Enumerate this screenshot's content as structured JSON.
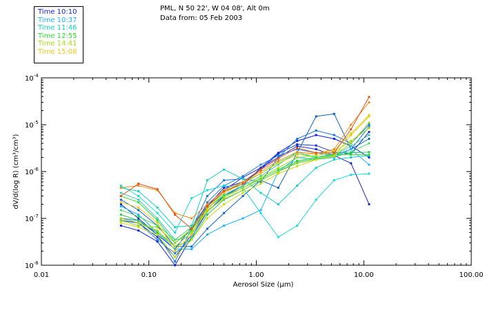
{
  "header": {
    "line1": "PML, N 50 22', W 04 08', Alt 0m",
    "line2": "Data from: 05 Feb 2003"
  },
  "legend": [
    {
      "label": "Time 10:10",
      "color": "#0a1ee6"
    },
    {
      "label": "Time 10:37",
      "color": "#18b4ff"
    },
    {
      "label": "Time 11:46",
      "color": "#10d2c8"
    },
    {
      "label": "Time 12:55",
      "color": "#2edc2e"
    },
    {
      "label": "Time 14:41",
      "color": "#a6dc14"
    },
    {
      "label": "Time 15:08",
      "color": "#f0c814"
    }
  ],
  "chart_data": {
    "type": "line",
    "title": "PML, N 50 22', W 04 08', Alt 0m",
    "xlabel": "Aerosol Size (μm)",
    "ylabel": "dV/d(log R) (cm³/cm³)",
    "xscale": "log",
    "yscale": "log",
    "xlim": [
      0.01,
      100
    ],
    "ylim": [
      1e-08,
      0.0001
    ],
    "xticks": [
      {
        "value": 0.01,
        "label": "0.01"
      },
      {
        "value": 0.1,
        "label": "0.10"
      },
      {
        "value": 1,
        "label": "1.00"
      },
      {
        "value": 10,
        "label": "10.00"
      },
      {
        "value": 100,
        "label": "100.00"
      }
    ],
    "yticks": [
      {
        "value": 1e-08,
        "label": "10",
        "exp": "-8"
      },
      {
        "value": 1e-07,
        "label": "10",
        "exp": "-7"
      },
      {
        "value": 1e-06,
        "label": "10",
        "exp": "-6"
      },
      {
        "value": 1e-05,
        "label": "10",
        "exp": "-5"
      },
      {
        "value": 0.0001,
        "label": "10",
        "exp": "-4"
      }
    ],
    "x": [
      0.055,
      0.08,
      0.12,
      0.175,
      0.25,
      0.35,
      0.5,
      0.75,
      1.1,
      1.6,
      2.4,
      3.6,
      5.3,
      7.6,
      11.2
    ],
    "series": [
      {
        "name": "Time 10:10",
        "color": "#0a1ee6",
        "values": [
          7e-08,
          5.5e-08,
          3.2e-08,
          1e-08,
          4e-08,
          1.4e-07,
          3e-07,
          5e-07,
          1.2e-06,
          2.5e-06,
          4.5e-06,
          6e-06,
          5e-06,
          3.5e-06,
          2e-06
        ]
      },
      {
        "name": "Time 10:10",
        "color": "#1e28c8",
        "values": [
          2e-07,
          1e-07,
          4.5e-08,
          2.2e-08,
          6.5e-08,
          2e-07,
          4e-07,
          7.5e-07,
          1.2e-06,
          2e-06,
          3.5e-06,
          3e-06,
          2.2e-06,
          1.5e-06,
          2e-07
        ]
      },
      {
        "name": "Time 10:10",
        "color": "#1432d2",
        "values": [
          9e-08,
          8e-08,
          4e-08,
          1.5e-08,
          4.5e-08,
          1.8e-07,
          4.5e-07,
          6e-07,
          1.1e-06,
          2.4e-06,
          3.8e-06,
          3.6e-06,
          2.6e-06,
          2.4e-06,
          7e-06
        ]
      },
      {
        "name": "Time 10:37",
        "color": "#1478dc",
        "values": [
          1e-07,
          9e-08,
          4.5e-08,
          1.2e-08,
          6e-08,
          3e-07,
          6.5e-07,
          7e-07,
          6e-07,
          2e-06,
          5e-06,
          7.5e-06,
          6e-06,
          4e-06,
          1e-05
        ]
      },
      {
        "name": "Time 10:37",
        "color": "#1e82e6",
        "values": [
          1e-07,
          8e-08,
          3.5e-08,
          1.8e-08,
          3.5e-08,
          2.2e-07,
          5e-07,
          8e-07,
          1.4e-06,
          2.2e-06,
          3e-06,
          2.5e-06,
          2.2e-06,
          3e-06,
          9e-06
        ]
      },
      {
        "name": "Time 10:37",
        "color": "#0a64c8",
        "values": [
          2.5e-07,
          1.5e-07,
          7e-08,
          2.5e-08,
          2.5e-08,
          6e-08,
          1.3e-07,
          3e-07,
          6.5e-07,
          4.5e-07,
          2.5e-06,
          1.5e-05,
          1.7e-05,
          3e-06,
          5e-06
        ]
      },
      {
        "name": "Time 10:37",
        "color": "#18b4ff",
        "values": [
          1.8e-07,
          1.2e-07,
          5e-08,
          2.2e-08,
          2.2e-08,
          4.5e-08,
          7e-08,
          1e-07,
          1.5e-07,
          1e-06,
          2e-06,
          1.8e-06,
          2e-06,
          3e-06,
          1.4e-06
        ]
      },
      {
        "name": "Time 11:46",
        "color": "#10d2c8",
        "values": [
          4.5e-07,
          3.8e-07,
          1.7e-07,
          6.5e-08,
          7e-08,
          6.5e-07,
          1.1e-06,
          7e-07,
          3.5e-07,
          2e-07,
          5e-07,
          1.2e-06,
          1.8e-06,
          2e-06,
          2.2e-06
        ]
      },
      {
        "name": "Time 11:46",
        "color": "#14dcdc",
        "values": [
          5e-07,
          3e-07,
          1.3e-07,
          5e-08,
          2.7e-07,
          4e-07,
          5e-07,
          4.5e-07,
          1.3e-07,
          4e-08,
          7e-08,
          2.5e-07,
          6.5e-07,
          8.5e-07,
          9e-07
        ]
      },
      {
        "name": "Time 11:46",
        "color": "#3cc8b4",
        "values": [
          3.5e-07,
          2.5e-07,
          1e-07,
          3.5e-08,
          4e-08,
          1.6e-07,
          3.2e-07,
          5e-07,
          8e-07,
          1.4e-06,
          2.6e-06,
          2e-06,
          2.2e-06,
          3.5e-06,
          6e-06
        ]
      },
      {
        "name": "Time 12:55",
        "color": "#2edc2e",
        "values": [
          3e-07,
          2.2e-07,
          9e-08,
          3e-08,
          5.5e-08,
          1.7e-07,
          3e-07,
          4.5e-07,
          7e-07,
          1.1e-06,
          1.7e-06,
          2e-06,
          2.3e-06,
          2.3e-06,
          2.3e-06
        ]
      },
      {
        "name": "Time 12:55",
        "color": "#46dc64",
        "values": [
          1.5e-07,
          1.1e-07,
          7e-08,
          3.5e-08,
          6.5e-08,
          1.8e-07,
          3.5e-07,
          6e-07,
          9e-07,
          1.6e-06,
          2.4e-06,
          2e-06,
          2.4e-06,
          2.6e-06,
          4e-06
        ]
      },
      {
        "name": "Time 12:55",
        "color": "#28c850",
        "values": [
          1.2e-07,
          9e-08,
          5e-08,
          2.5e-08,
          3.5e-08,
          1.2e-07,
          2.5e-07,
          4e-07,
          6.5e-07,
          1e-06,
          1.6e-06,
          1.9e-06,
          2.1e-06,
          2.5e-06,
          2.6e-06
        ]
      },
      {
        "name": "Time 14:41",
        "color": "#a6dc14",
        "values": [
          1e-07,
          8e-08,
          5.5e-08,
          2.5e-08,
          5e-08,
          1.4e-07,
          2.8e-07,
          4.5e-07,
          7.5e-07,
          1.2e-06,
          2e-06,
          2.2e-06,
          2.6e-06,
          4.5e-06,
          8.5e-06
        ]
      },
      {
        "name": "Time 14:41",
        "color": "#8cd228",
        "values": [
          9e-08,
          7e-08,
          6.5e-08,
          3e-08,
          6e-08,
          1.5e-07,
          2.6e-07,
          4e-07,
          6.5e-07,
          1e-06,
          1.5e-06,
          1.8e-06,
          2.2e-06,
          4e-06,
          1.1e-05
        ]
      },
      {
        "name": "Time 14:41",
        "color": "#c8dc0a",
        "values": [
          8e-08,
          6.5e-08,
          4.5e-08,
          1.5e-08,
          3.5e-08,
          1e-07,
          2e-07,
          3.5e-07,
          5.5e-07,
          9e-07,
          1.3e-06,
          1.8e-06,
          2.1e-06,
          6e-06,
          1.5e-05
        ]
      },
      {
        "name": "Time 15:08",
        "color": "#f0c814",
        "values": [
          2.2e-07,
          1.7e-07,
          8e-08,
          2e-08,
          4.5e-08,
          1.6e-07,
          3.5e-07,
          5.5e-07,
          9e-07,
          1.5e-06,
          2.3e-06,
          2.4e-06,
          2.8e-06,
          6.5e-06,
          1.6e-05
        ]
      },
      {
        "name": "Time 15:08",
        "color": "#f08c1e",
        "values": [
          4.5e-07,
          5e-07,
          4e-07,
          1.3e-07,
          1e-07,
          2e-07,
          4e-07,
          6e-07,
          1e-06,
          1.7e-06,
          2.6e-06,
          2.4e-06,
          3e-06,
          1e-05,
          3e-05
        ]
      },
      {
        "name": "Time 15:08",
        "color": "#e65014",
        "values": [
          3e-07,
          5.5e-07,
          4.2e-07,
          1.2e-07,
          6e-08,
          1.8e-07,
          3.8e-07,
          5.5e-07,
          1.1e-06,
          1.9e-06,
          3.2e-06,
          2.5e-06,
          2.5e-06,
          8e-06,
          3.9e-05
        ]
      }
    ]
  }
}
